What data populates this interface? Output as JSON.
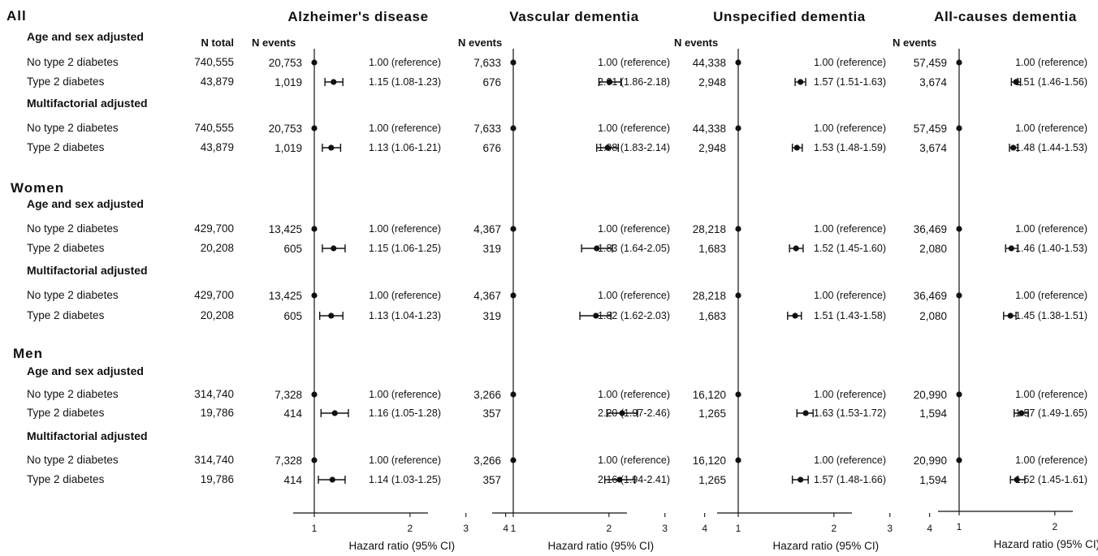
{
  "chart_data": {
    "type": "forest",
    "scale": "log",
    "xlabel": "Hazard ratio (95% CI)",
    "x_ticks": [
      1,
      2,
      3,
      4
    ],
    "xlim": [
      0.7,
      5
    ],
    "columns": {
      "n_total": "N total",
      "n_events": "N events"
    },
    "panels": [
      {
        "key": "alz",
        "title": "Alzheimer's disease"
      },
      {
        "key": "vas",
        "title": "Vascular dementia"
      },
      {
        "key": "uns",
        "title": "Unspecified dementia"
      },
      {
        "key": "all",
        "title": "All-causes dementia"
      }
    ],
    "groups": [
      {
        "label": "All",
        "subgroups": [
          {
            "label": "Age and sex adjusted",
            "rows": [
              {
                "label": "No type 2 diabetes",
                "n_total": "740,555",
                "events": {
                  "alz": "20,753",
                  "vas": "7,633",
                  "uns": "44,338",
                  "all": "57,459"
                },
                "hr": {
                  "alz": [
                    1,
                    1,
                    1
                  ],
                  "vas": [
                    1,
                    1,
                    1
                  ],
                  "uns": [
                    1,
                    1,
                    1
                  ],
                  "all": [
                    1,
                    1,
                    1
                  ]
                },
                "hr_text": {
                  "alz": "1.00 (reference)",
                  "vas": "1.00 (reference)",
                  "uns": "1.00 (reference)",
                  "all": "1.00 (reference)"
                }
              },
              {
                "label": "Type 2 diabetes",
                "n_total": "43,879",
                "events": {
                  "alz": "1,019",
                  "vas": "676",
                  "uns": "2,948",
                  "all": "3,674"
                },
                "hr": {
                  "alz": [
                    1.15,
                    1.08,
                    1.23
                  ],
                  "vas": [
                    2.01,
                    1.86,
                    2.18
                  ],
                  "uns": [
                    1.57,
                    1.51,
                    1.63
                  ],
                  "all": [
                    1.51,
                    1.46,
                    1.56
                  ]
                },
                "hr_text": {
                  "alz": "1.15 (1.08-1.23)",
                  "vas": "2.01 (1.86-2.18)",
                  "uns": "1.57 (1.51-1.63)",
                  "all": "1.51 (1.46-1.56)"
                }
              }
            ]
          },
          {
            "label": "Multifactorial adjusted",
            "rows": [
              {
                "label": "No type 2 diabetes",
                "n_total": "740,555",
                "events": {
                  "alz": "20,753",
                  "vas": "7,633",
                  "uns": "44,338",
                  "all": "57,459"
                },
                "hr": {
                  "alz": [
                    1,
                    1,
                    1
                  ],
                  "vas": [
                    1,
                    1,
                    1
                  ],
                  "uns": [
                    1,
                    1,
                    1
                  ],
                  "all": [
                    1,
                    1,
                    1
                  ]
                },
                "hr_text": {
                  "alz": "1.00 (reference)",
                  "vas": "1.00 (reference)",
                  "uns": "1.00 (reference)",
                  "all": "1.00 (reference)"
                }
              },
              {
                "label": "Type 2 diabetes",
                "n_total": "43,879",
                "events": {
                  "alz": "1,019",
                  "vas": "676",
                  "uns": "2,948",
                  "all": "3,674"
                },
                "hr": {
                  "alz": [
                    1.13,
                    1.06,
                    1.21
                  ],
                  "vas": [
                    1.98,
                    1.83,
                    2.14
                  ],
                  "uns": [
                    1.53,
                    1.48,
                    1.59
                  ],
                  "all": [
                    1.48,
                    1.44,
                    1.53
                  ]
                },
                "hr_text": {
                  "alz": "1.13 (1.06-1.21)",
                  "vas": "1.98 (1.83-2.14)",
                  "uns": "1.53 (1.48-1.59)",
                  "all": "1.48 (1.44-1.53)"
                }
              }
            ]
          }
        ]
      },
      {
        "label": "Women",
        "subgroups": [
          {
            "label": "Age and sex adjusted",
            "rows": [
              {
                "label": "No type 2 diabetes",
                "n_total": "429,700",
                "events": {
                  "alz": "13,425",
                  "vas": "4,367",
                  "uns": "28,218",
                  "all": "36,469"
                },
                "hr": {
                  "alz": [
                    1,
                    1,
                    1
                  ],
                  "vas": [
                    1,
                    1,
                    1
                  ],
                  "uns": [
                    1,
                    1,
                    1
                  ],
                  "all": [
                    1,
                    1,
                    1
                  ]
                },
                "hr_text": {
                  "alz": "1.00 (reference)",
                  "vas": "1.00 (reference)",
                  "uns": "1.00 (reference)",
                  "all": "1.00 (reference)"
                }
              },
              {
                "label": "Type 2 diabetes",
                "n_total": "20,208",
                "events": {
                  "alz": "605",
                  "vas": "319",
                  "uns": "1,683",
                  "all": "2,080"
                },
                "hr": {
                  "alz": [
                    1.15,
                    1.06,
                    1.25
                  ],
                  "vas": [
                    1.83,
                    1.64,
                    2.05
                  ],
                  "uns": [
                    1.52,
                    1.45,
                    1.6
                  ],
                  "all": [
                    1.46,
                    1.4,
                    1.53
                  ]
                },
                "hr_text": {
                  "alz": "1.15 (1.06-1.25)",
                  "vas": "1.83 (1.64-2.05)",
                  "uns": "1.52 (1.45-1.60)",
                  "all": "1.46 (1.40-1.53)"
                }
              }
            ]
          },
          {
            "label": "Multifactorial adjusted",
            "rows": [
              {
                "label": "No type 2 diabetes",
                "n_total": "429,700",
                "events": {
                  "alz": "13,425",
                  "vas": "4,367",
                  "uns": "28,218",
                  "all": "36,469"
                },
                "hr": {
                  "alz": [
                    1,
                    1,
                    1
                  ],
                  "vas": [
                    1,
                    1,
                    1
                  ],
                  "uns": [
                    1,
                    1,
                    1
                  ],
                  "all": [
                    1,
                    1,
                    1
                  ]
                },
                "hr_text": {
                  "alz": "1.00 (reference)",
                  "vas": "1.00 (reference)",
                  "uns": "1.00 (reference)",
                  "all": "1.00 (reference)"
                }
              },
              {
                "label": "Type 2 diabetes",
                "n_total": "20,208",
                "events": {
                  "alz": "605",
                  "vas": "319",
                  "uns": "1,683",
                  "all": "2,080"
                },
                "hr": {
                  "alz": [
                    1.13,
                    1.04,
                    1.23
                  ],
                  "vas": [
                    1.82,
                    1.62,
                    2.03
                  ],
                  "uns": [
                    1.51,
                    1.43,
                    1.58
                  ],
                  "all": [
                    1.45,
                    1.38,
                    1.51
                  ]
                },
                "hr_text": {
                  "alz": "1.13 (1.04-1.23)",
                  "vas": "1.82 (1.62-2.03)",
                  "uns": "1.51 (1.43-1.58)",
                  "all": "1.45 (1.38-1.51)"
                }
              }
            ]
          }
        ]
      },
      {
        "label": "Men",
        "subgroups": [
          {
            "label": "Age and sex adjusted",
            "rows": [
              {
                "label": "No type 2 diabetes",
                "n_total": "314,740",
                "events": {
                  "alz": "7,328",
                  "vas": "3,266",
                  "uns": "16,120",
                  "all": "20,990"
                },
                "hr": {
                  "alz": [
                    1,
                    1,
                    1
                  ],
                  "vas": [
                    1,
                    1,
                    1
                  ],
                  "uns": [
                    1,
                    1,
                    1
                  ],
                  "all": [
                    1,
                    1,
                    1
                  ]
                },
                "hr_text": {
                  "alz": "1.00 (reference)",
                  "vas": "1.00 (reference)",
                  "uns": "1.00 (reference)",
                  "all": "1.00 (reference)"
                }
              },
              {
                "label": "Type 2 diabetes",
                "n_total": "19,786",
                "events": {
                  "alz": "414",
                  "vas": "357",
                  "uns": "1,265",
                  "all": "1,594"
                },
                "hr": {
                  "alz": [
                    1.16,
                    1.05,
                    1.28
                  ],
                  "vas": [
                    2.2,
                    1.97,
                    2.46
                  ],
                  "uns": [
                    1.63,
                    1.53,
                    1.72
                  ],
                  "all": [
                    1.57,
                    1.49,
                    1.65
                  ]
                },
                "hr_text": {
                  "alz": "1.16 (1.05-1.28)",
                  "vas": "2.20 (1.97-2.46)",
                  "uns": "1.63 (1.53-1.72)",
                  "all": "1.57 (1.49-1.65)"
                }
              }
            ]
          },
          {
            "label": "Multifactorial adjusted",
            "rows": [
              {
                "label": "No type 2 diabetes",
                "n_total": "314,740",
                "events": {
                  "alz": "7,328",
                  "vas": "3,266",
                  "uns": "16,120",
                  "all": "20,990"
                },
                "hr": {
                  "alz": [
                    1,
                    1,
                    1
                  ],
                  "vas": [
                    1,
                    1,
                    1
                  ],
                  "uns": [
                    1,
                    1,
                    1
                  ],
                  "all": [
                    1,
                    1,
                    1
                  ]
                },
                "hr_text": {
                  "alz": "1.00 (reference)",
                  "vas": "1.00 (reference)",
                  "uns": "1.00 (reference)",
                  "all": "1.00 (reference)"
                }
              },
              {
                "label": "Type 2 diabetes",
                "n_total": "19,786",
                "events": {
                  "alz": "414",
                  "vas": "357",
                  "uns": "1,265",
                  "all": "1,594"
                },
                "hr": {
                  "alz": [
                    1.14,
                    1.03,
                    1.25
                  ],
                  "vas": [
                    2.16,
                    1.94,
                    2.41
                  ],
                  "uns": [
                    1.57,
                    1.48,
                    1.66
                  ],
                  "all": [
                    1.52,
                    1.45,
                    1.61
                  ]
                },
                "hr_text": {
                  "alz": "1.14 (1.03-1.25)",
                  "vas": "2.16 (1.94-2.41)",
                  "uns": "1.57 (1.48-1.66)",
                  "all": "1.52 (1.45-1.61)"
                }
              }
            ]
          }
        ]
      }
    ]
  }
}
